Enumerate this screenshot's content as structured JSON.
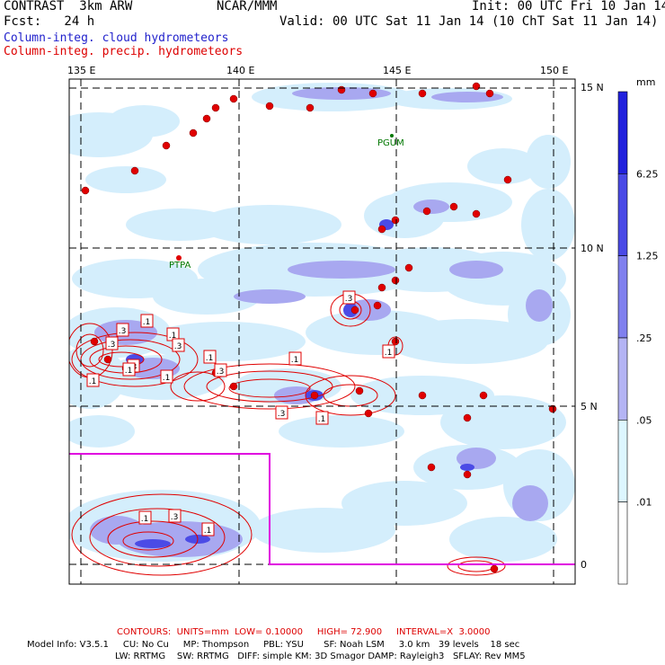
{
  "header": {
    "model": "CONTRAST  3km ARW",
    "center": "NCAR/MMM",
    "init": "Init: 00 UTC Fri 10 Jan 14",
    "fcst": "Fcst:   24 h",
    "valid": "Valid: 00 UTC Sat 11 Jan 14 (10 ChT Sat 11 Jan 14)",
    "legend_cloud": "Column-integ. cloud hydrometeors",
    "legend_precip": "Column-integ. precip. hydrometeors"
  },
  "colors": {
    "cloud": "#2f2fe0",
    "precip": "#e00000",
    "box": "#e000e0",
    "station": "#007700"
  },
  "axes": {
    "lon_labels": [
      "135 E",
      "140 E",
      "145 E",
      "150 E"
    ],
    "lat_labels": [
      "15 N",
      "10 N",
      "5 N",
      "0"
    ]
  },
  "stations": [
    "PGUM",
    "PTPA"
  ],
  "contour_labels": [
    ".1",
    ".3",
    ".1",
    ".3",
    ".1",
    ".1",
    ".3",
    ".1",
    ".3",
    ".1",
    ".3",
    ".1",
    ".1",
    ".3",
    ".1",
    ".3",
    ".1",
    ".1",
    ".3"
  ],
  "colorbar": {
    "unit": "mm",
    "labels": [
      "6.25",
      "1.25",
      ".25",
      ".05",
      ".01"
    ],
    "colors": [
      "#2222dd",
      "#4a4ae6",
      "#8080ee",
      "#b4b4f4",
      "#ddf6ff",
      "#ffffff"
    ]
  },
  "footer": {
    "contours": "CONTOURS:  UNITS=mm  LOW= 0.10000     HIGH= 72.900     INTERVAL=X  3.0000",
    "line1": "Model Info: V3.5.1     CU: No Cu     MP: Thompson     PBL: YSU       SF: Noah LSM     3.0 km   39 levels    18 sec",
    "line2": "LW: RRTMG    SW: RRTMG   DIFF: simple KM: 3D Smagor DAMP: Rayleigh3   SFLAY: Rev MM5"
  }
}
